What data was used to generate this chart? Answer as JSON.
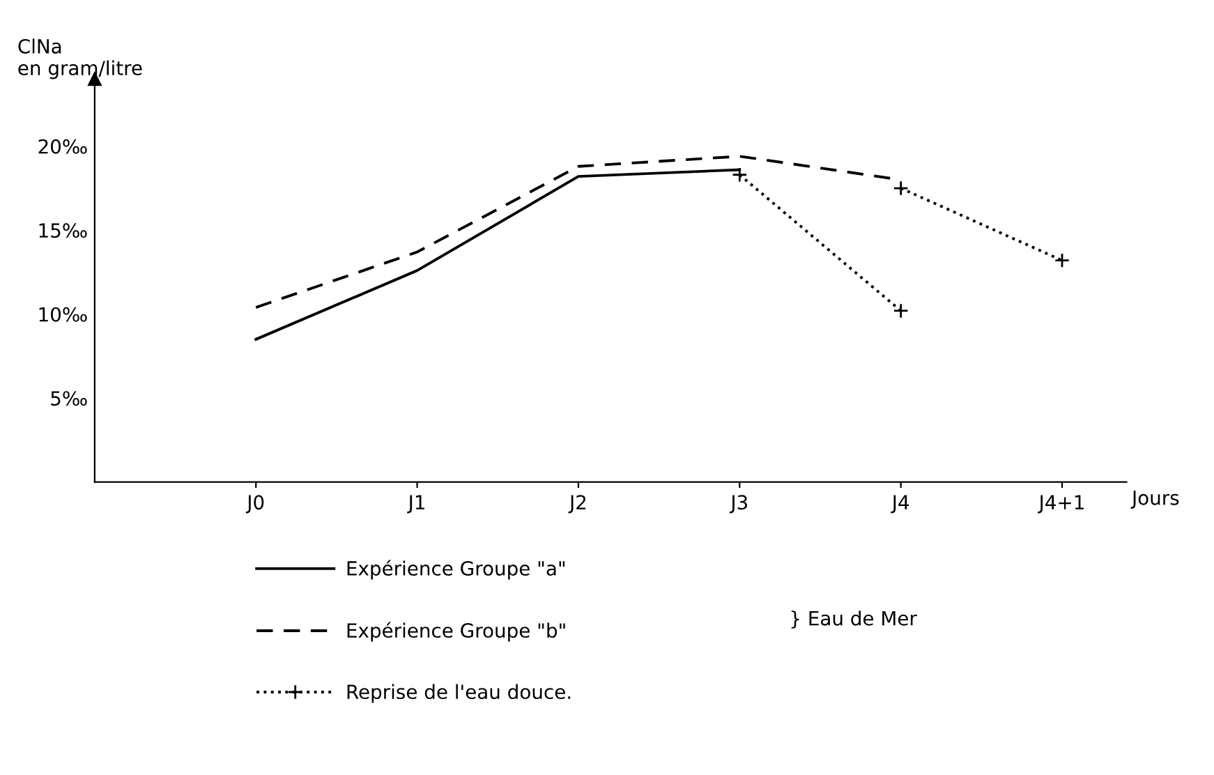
{
  "chart_data": {
    "type": "line",
    "ylabel": "ClNa\nen gram/litre",
    "xlabel": "Jours",
    "categories": [
      "J0",
      "J1",
      "J2",
      "J3",
      "J4",
      "J4+1"
    ],
    "series": [
      {
        "name": "Expérience Groupe \"a\"",
        "color": "#000000",
        "line_style": "solid",
        "values": [
          8.5,
          12.6,
          18.2,
          18.6,
          null,
          null
        ]
      },
      {
        "name": "Expérience Groupe \"b\"",
        "color": "#000000",
        "line_style": "dashed",
        "values": [
          10.4,
          13.7,
          18.8,
          19.4,
          18.0,
          null
        ]
      },
      {
        "name": "Reprise de l'eau douce.",
        "color": "#000000",
        "line_style": "dotted",
        "marker": "cross",
        "values": [
          null,
          null,
          null,
          18.3,
          10.2,
          null
        ]
      },
      {
        "color": "#000000",
        "line_style": "dotted",
        "marker": "cross",
        "values": [
          null,
          null,
          null,
          null,
          17.5,
          13.2
        ]
      }
    ],
    "ylim": [
      0,
      24
    ],
    "yticks": [
      {
        "value": 5,
        "label": "5‰"
      },
      {
        "value": 10,
        "label": "10‰"
      },
      {
        "value": 15,
        "label": "15‰"
      },
      {
        "value": 20,
        "label": "20‰"
      }
    ],
    "grid": false,
    "legend": "bottom",
    "annotations": [
      "} Eau de Mer"
    ]
  }
}
